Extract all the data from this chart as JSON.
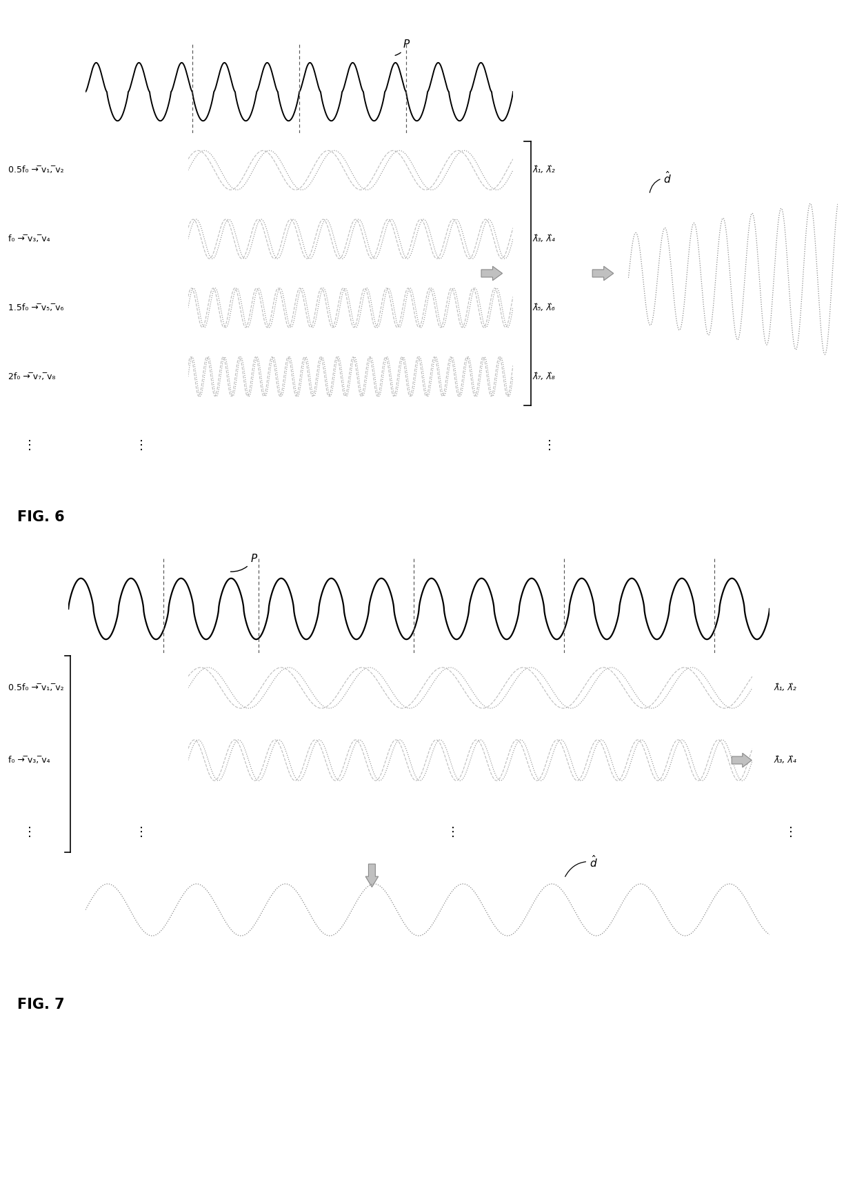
{
  "bg_color": "#ffffff",
  "signal_color": "#000000",
  "gray_color": "#777777",
  "fig6_label": "FIG. 6",
  "fig7_label": "FIG. 7",
  "P_label": "P",
  "d_hat_label": "$\\hat{d}$",
  "fig6_rows": [
    {
      "label": "0.5f₀ → ̅v₁, ̅v₂",
      "lam": "λ̂₁, λ̂₂",
      "freq": 0.5
    },
    {
      "label": "f₀ → ̅v₃, ̅v₄",
      "lam": "λ̂₃, λ̂₄",
      "freq": 1.0
    },
    {
      "label": "1.5f₀ → ̅v₅, ̅v₆",
      "lam": "λ̂₅, λ̂₆",
      "freq": 1.5
    },
    {
      "label": "2f₀ → ̅v₇, ̅v₈",
      "lam": "λ̂₇, λ̂₈",
      "freq": 2.0
    }
  ],
  "fig7_rows": [
    {
      "label": "0.5f₀ → ̅v₁, ̅v₂",
      "lam": "λ̂₁, λ̂₂",
      "freq": 0.5
    },
    {
      "label": "f₀ → ̅v₃, ̅v₄",
      "lam": "λ̂₃, λ̂₄",
      "freq": 1.0
    }
  ]
}
